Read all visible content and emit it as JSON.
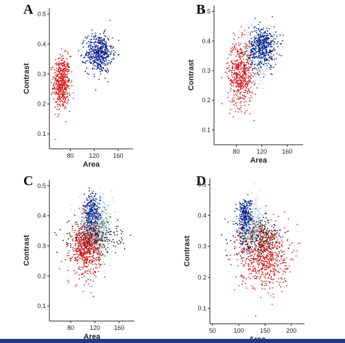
{
  "colors": {
    "red": "#d7191c",
    "darkblue": "#08208a",
    "lightblue": "#a9cde0",
    "black": "#111111",
    "bottom_rule": "#1d3a8a"
  },
  "chart_data": [
    {
      "type": "scatter",
      "panel": "A",
      "xlabel": "Area",
      "ylabel": "Contrast",
      "xlim": [
        45,
        185
      ],
      "ylim": [
        0.05,
        0.52
      ],
      "xticks": [
        80,
        120,
        160
      ],
      "yticks": [
        0.1,
        0.2,
        0.3,
        0.4,
        0.5
      ],
      "grid": false,
      "clusters": [
        {
          "color": "red",
          "center": [
            66,
            0.27
          ],
          "spread": [
            7,
            0.045
          ],
          "n": 500
        },
        {
          "color": "darkblue",
          "center": [
            128,
            0.37
          ],
          "spread": [
            11,
            0.032
          ],
          "n": 500
        }
      ]
    },
    {
      "type": "scatter",
      "panel": "B",
      "xlabel": "Area",
      "ylabel": "Contrast",
      "xlim": [
        45,
        185
      ],
      "ylim": [
        0.05,
        0.52
      ],
      "xticks": [
        80,
        120,
        160
      ],
      "yticks": [
        0.1,
        0.2,
        0.3,
        0.4,
        0.5
      ],
      "grid": false,
      "clusters": [
        {
          "color": "lightblue",
          "center": [
            112,
            0.36
          ],
          "spread": [
            13,
            0.045
          ],
          "n": 300
        },
        {
          "color": "red",
          "center": [
            87,
            0.29
          ],
          "spread": [
            10,
            0.055
          ],
          "n": 550
        },
        {
          "color": "darkblue",
          "center": [
            122,
            0.38
          ],
          "spread": [
            11,
            0.035
          ],
          "n": 450
        }
      ]
    },
    {
      "type": "scatter",
      "panel": "C",
      "xlabel": "Area",
      "ylabel": "Contrast",
      "xlim": [
        45,
        185
      ],
      "ylim": [
        0.05,
        0.52
      ],
      "xticks": [
        80,
        120,
        160
      ],
      "yticks": [
        0.1,
        0.2,
        0.3,
        0.4,
        0.5
      ],
      "grid": false,
      "clusters": [
        {
          "color": "black",
          "center": [
            118,
            0.33
          ],
          "spread": [
            20,
            0.03
          ],
          "n": 400
        },
        {
          "color": "lightblue",
          "center": [
            122,
            0.37
          ],
          "spread": [
            14,
            0.04
          ],
          "n": 450
        },
        {
          "color": "red",
          "center": [
            105,
            0.29
          ],
          "spread": [
            12,
            0.045
          ],
          "n": 550
        },
        {
          "color": "darkblue",
          "center": [
            115,
            0.41
          ],
          "spread": [
            7,
            0.03
          ],
          "n": 250
        }
      ]
    },
    {
      "type": "scatter",
      "panel": "D",
      "xlabel": "Area",
      "ylabel": "Contrast",
      "xlim": [
        45,
        225
      ],
      "ylim": [
        0.05,
        0.52
      ],
      "xticks": [
        50,
        100,
        150,
        200
      ],
      "yticks": [
        0.1,
        0.2,
        0.3,
        0.4,
        0.5
      ],
      "grid": false,
      "clusters": [
        {
          "color": "black",
          "center": [
            135,
            0.33
          ],
          "spread": [
            22,
            0.03
          ],
          "n": 350
        },
        {
          "color": "lightblue",
          "center": [
            122,
            0.37
          ],
          "spread": [
            13,
            0.04
          ],
          "n": 400
        },
        {
          "color": "red",
          "center": [
            148,
            0.27
          ],
          "spread": [
            23,
            0.055
          ],
          "n": 650
        },
        {
          "color": "darkblue",
          "center": [
            112,
            0.4
          ],
          "spread": [
            7,
            0.03
          ],
          "n": 250
        }
      ]
    }
  ]
}
